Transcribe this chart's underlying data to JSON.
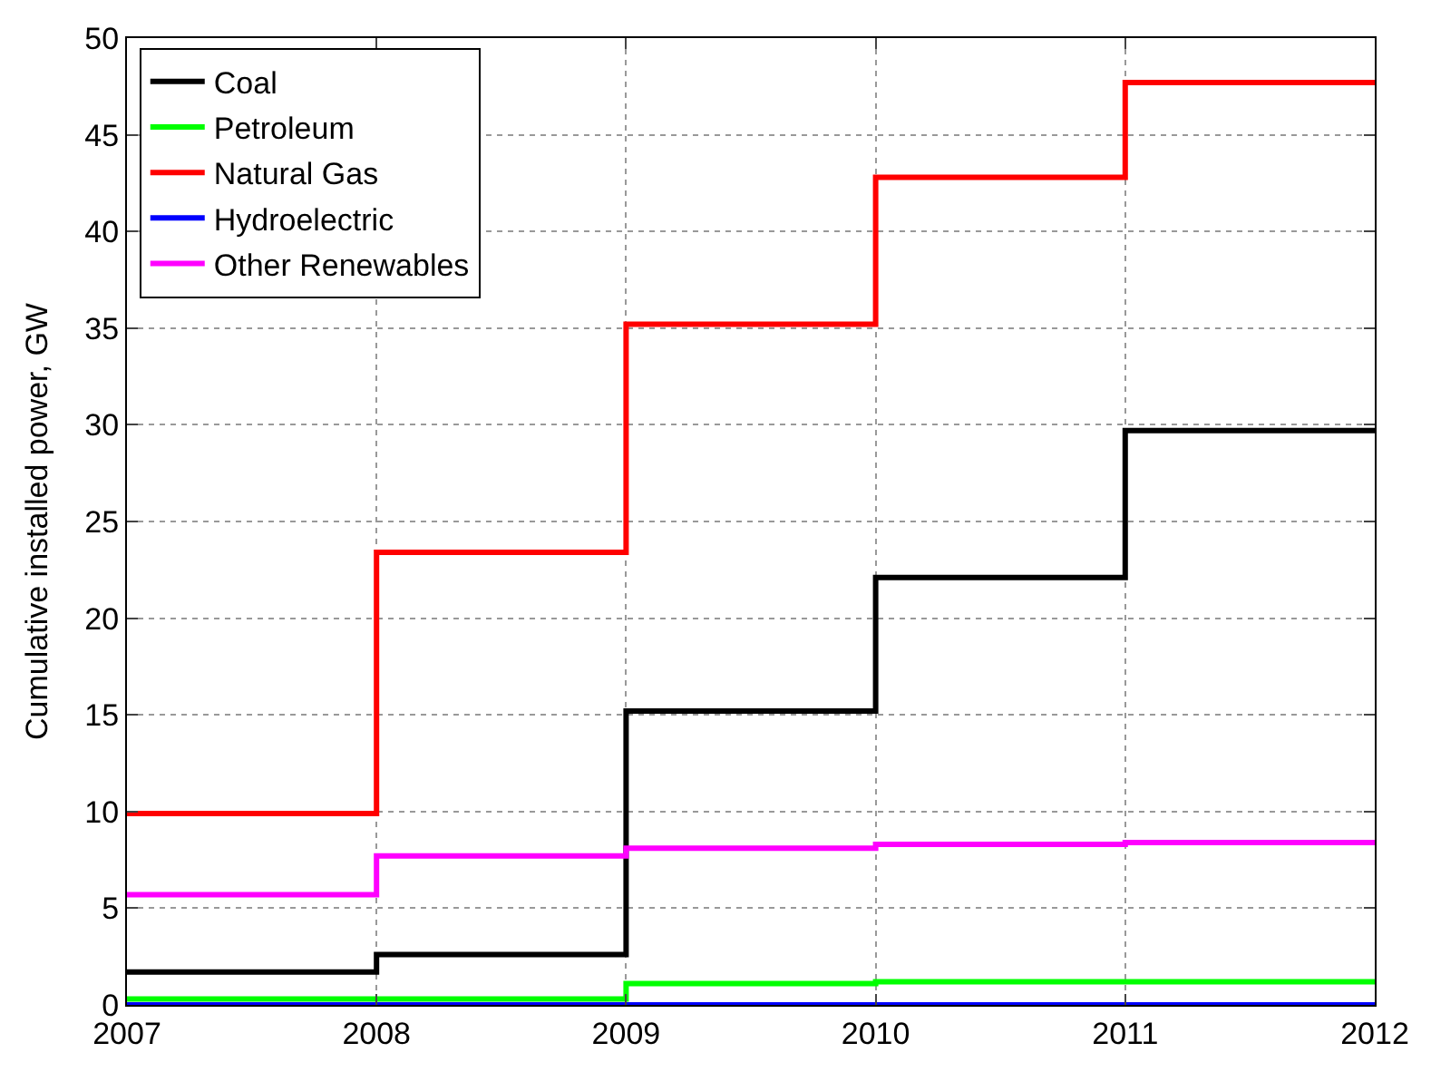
{
  "chart_data": {
    "type": "step",
    "ylabel": "Cumulative installed power, GW",
    "x": [
      2007,
      2008,
      2009,
      2010,
      2011,
      2012
    ],
    "series": [
      {
        "name": "Coal",
        "color": "#000000",
        "values": [
          1.7,
          2.6,
          15.2,
          22.1,
          29.7,
          29.7
        ]
      },
      {
        "name": "Petroleum",
        "color": "#00ff00",
        "values": [
          0.3,
          0.3,
          1.1,
          1.2,
          1.2,
          1.2
        ]
      },
      {
        "name": "Natural Gas",
        "color": "#ff0000",
        "values": [
          9.9,
          23.4,
          35.2,
          42.8,
          47.7,
          47.7
        ]
      },
      {
        "name": "Hydroelectric",
        "color": "#0000ff",
        "values": [
          0,
          0,
          0,
          0,
          0,
          0
        ]
      },
      {
        "name": "Other Renewables",
        "color": "#ff00ff",
        "values": [
          5.7,
          7.7,
          8.1,
          8.3,
          8.4,
          8.4
        ]
      }
    ],
    "xlim": [
      2007,
      2012
    ],
    "xticks": [
      2007,
      2008,
      2009,
      2010,
      2011,
      2012
    ],
    "ylim": [
      0,
      50
    ],
    "yticks": [
      0,
      5,
      10,
      15,
      20,
      25,
      30,
      35,
      40,
      45,
      50
    ],
    "grid": true,
    "legend": "top left",
    "line_style": "solid"
  }
}
